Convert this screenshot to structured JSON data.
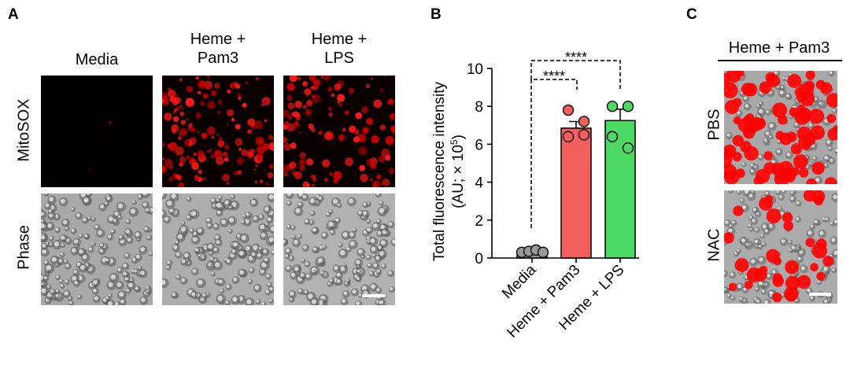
{
  "panels": {
    "a": {
      "letter": "A",
      "columns": [
        "Media",
        "Heme +\nPam3",
        "Heme +\nLPS"
      ],
      "rows": [
        "MitoSOX",
        "Phase"
      ]
    },
    "b": {
      "letter": "B",
      "significance": [
        "****",
        "****"
      ]
    },
    "c": {
      "letter": "C",
      "header": "Heme + Pam3",
      "rows": [
        "PBS",
        "NAC"
      ]
    }
  },
  "chart_data": {
    "type": "bar",
    "ylabel_line1": "Total fluorescence intensity",
    "ylabel_line2": "(AU; × 10",
    "ylabel_exp": "5",
    "ylabel_close": ")",
    "ylim": [
      0,
      10
    ],
    "yticks": [
      "0",
      "2",
      "4",
      "6",
      "8",
      "10"
    ],
    "categories": [
      "Media",
      "Heme + Pam3",
      "Heme + LPS"
    ],
    "values": [
      0.35,
      6.85,
      7.25
    ],
    "errors": [
      0.05,
      0.35,
      0.6
    ],
    "colors": [
      "#999999",
      "#f25f5c",
      "#4cd964"
    ],
    "points": [
      [
        0.3,
        0.35,
        0.42,
        0.3
      ],
      [
        7.8,
        6.5,
        6.4,
        7.2
      ],
      [
        8.0,
        8.0,
        6.4,
        5.8
      ]
    ]
  }
}
